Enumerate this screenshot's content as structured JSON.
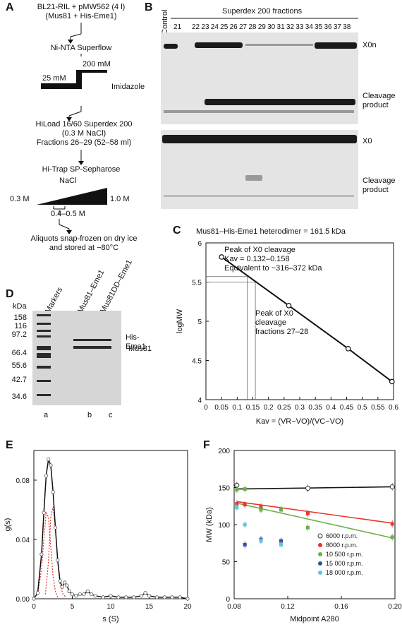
{
  "panelA": {
    "label": "A",
    "step1_line1": "BL21-RIL + pMW562 (4 l)",
    "step1_line2": "(Mus81 + His-Eme1)",
    "step2": "Ni-NTA Superflow",
    "imid_low": "25 mM",
    "imid_high": "200 mM",
    "imid_label": "Imidazole",
    "step3_line1": "HiLoad 16/60 Superdex 200",
    "step3_line2": "(0.3 M NaCl)",
    "step3_line3": "Fractions 26–29 (52–58 ml)",
    "step4": "Hi-Trap SP-Sepharose",
    "nacl_label": "NaCl",
    "nacl_low": "0.3 M",
    "nacl_high": "1.0 M",
    "nacl_range": "0.4–0.5 M",
    "step5_line1": "Aliquots snap-frozen on dry ice",
    "step5_line2": "and stored at −80°C"
  },
  "panelB": {
    "label": "B",
    "header": "Superdex 200 fractions",
    "control": "Control",
    "lanes": [
      "21",
      "22",
      "23",
      "24",
      "25",
      "26",
      "27",
      "28",
      "29",
      "30",
      "31",
      "32",
      "33",
      "34",
      "35",
      "36",
      "37",
      "38"
    ],
    "top_band_label": "X0n",
    "top_product_line1": "Cleavage",
    "top_product_line2": "product",
    "bottom_band_label": "X0",
    "bottom_product_line1": "Cleavage",
    "bottom_product_line2": "product"
  },
  "panelC": {
    "label": "C",
    "title": "Mus81–His-Eme1 heterodimer = 161.5 kDa",
    "annot1_line1": "Peak of X0 cleavage",
    "annot1_line2": "Kav = 0.132–0.158",
    "annot1_line3": "Equivalent to ~316–372 kDa",
    "annot2_line1": "Peak of X0",
    "annot2_line2": "cleavage",
    "annot2_line3": "fractions 27–28"
  },
  "panelD": {
    "label": "D",
    "kda": "kDa",
    "col_labels": [
      "Markers",
      "Mus81–Eme1",
      "Mus81DD–Eme1"
    ],
    "markers": [
      "158",
      "116",
      "97.2",
      "66.4",
      "55.6",
      "42.7",
      "34.6"
    ],
    "band1_line1": "His-",
    "band1_line2": "Eme1",
    "band2": "Mus81",
    "lane_letters": [
      "a",
      "b",
      "c"
    ]
  },
  "panelE": {
    "label": "E"
  },
  "panelF": {
    "label": "F"
  },
  "chart_data": [
    {
      "id": "C",
      "type": "line",
      "xlabel": "Kav = (VR−VO)/(VC−VO)",
      "ylabel": "logMW",
      "xlim": [
        0,
        0.6
      ],
      "ylim": [
        4,
        6
      ],
      "xticks": [
        "0",
        "0.05",
        "0.1",
        "0.15",
        "0.2",
        "0.25",
        "0.3",
        "0.35",
        "0.4",
        "0.45",
        "0.5",
        "0.55",
        "0.6"
      ],
      "yticks": [
        "4",
        "4.5",
        "5",
        "5.5",
        "6"
      ],
      "series": [
        {
          "x": [
            0.05,
            0.265,
            0.455,
            0.595
          ],
          "y": [
            5.82,
            5.2,
            4.65,
            4.23
          ]
        }
      ],
      "shaded_x": [
        0.132,
        0.158
      ],
      "shaded_y": [
        5.5,
        5.57
      ]
    },
    {
      "id": "E",
      "type": "line",
      "xlabel": "s (S)",
      "ylabel": "g(s)",
      "xlim": [
        0,
        20
      ],
      "ylim": [
        0,
        0.1
      ],
      "xticks": [
        "0",
        "5",
        "10",
        "15",
        "20"
      ],
      "yticks": [
        "0.00",
        "0.04",
        "0.08"
      ],
      "series": [
        {
          "x": [
            0,
            0.5,
            1,
            1.3,
            1.6,
            1.9,
            2.2,
            2.5,
            2.8,
            3.1,
            3.4,
            3.7,
            4.0,
            4.3,
            4.6,
            5.0,
            5.5,
            6.0,
            6.5,
            7.0,
            7.5,
            8.0,
            9.0,
            10,
            11,
            12,
            13,
            14,
            14.5,
            15,
            16,
            17,
            18,
            19,
            20
          ],
          "y": [
            0,
            0.004,
            0.03,
            0.058,
            0.083,
            0.094,
            0.09,
            0.072,
            0.048,
            0.026,
            0.012,
            0.008,
            0.011,
            0.009,
            0.005,
            0.003,
            0.002,
            0.003,
            0.003,
            0.005,
            0.003,
            0.002,
            0.001,
            0.002,
            0.001,
            0.001,
            0.001,
            0.002,
            0.004,
            0.002,
            0.001,
            0.001,
            0.001,
            0.001,
            0
          ]
        },
        {
          "x": [
            0.5,
            1.0,
            1.3,
            1.6,
            1.9,
            2.2,
            2.5,
            2.8,
            3.1
          ],
          "y": [
            0.003,
            0.02,
            0.04,
            0.058,
            0.055,
            0.035,
            0.015,
            0.005,
            0.001
          ]
        },
        {
          "x": [
            1.5,
            1.9,
            2.2,
            2.5,
            2.8,
            3.1,
            3.4,
            3.8,
            4.2
          ],
          "y": [
            0.003,
            0.025,
            0.055,
            0.062,
            0.048,
            0.025,
            0.01,
            0.003,
            0.001
          ]
        }
      ]
    },
    {
      "id": "F",
      "type": "scatter",
      "xlabel": "Midpoint A280",
      "ylabel": "MW (kDa)",
      "xlim": [
        0.08,
        0.2
      ],
      "ylim": [
        0,
        200
      ],
      "xticks": [
        "0.08",
        "0.12",
        "0.16",
        "0.20"
      ],
      "yticks": [
        "0",
        "50",
        "100",
        "150",
        "200"
      ],
      "series": [
        {
          "name": "6000 r.p.m.",
          "color": "#333333",
          "x": [
            0.082,
            0.135,
            0.198
          ],
          "y": [
            153,
            149,
            151
          ]
        },
        {
          "name": "8000 r.p.m.",
          "color": "#e8372c",
          "x": [
            0.082,
            0.088,
            0.1,
            0.115,
            0.135,
            0.198
          ],
          "y": [
            128,
            127,
            124,
            120,
            115,
            101
          ]
        },
        {
          "name": "10 500 r.p.m.",
          "color": "#6ab04c",
          "x": [
            0.082,
            0.088,
            0.1,
            0.115,
            0.135,
            0.198
          ],
          "y": [
            147,
            148,
            120,
            120,
            96,
            83
          ]
        },
        {
          "name": "15 000 r.p.m.",
          "color": "#2d4fa3",
          "x": [
            0.088,
            0.1,
            0.115
          ],
          "y": [
            73,
            80,
            78
          ]
        },
        {
          "name": "18 000 r.p.m.",
          "color": "#5fc6d6",
          "x": [
            0.082,
            0.088,
            0.1,
            0.115
          ],
          "y": [
            123,
            100,
            78,
            73
          ]
        }
      ],
      "fit_lines": [
        {
          "color": "#111111",
          "x": [
            0.082,
            0.198
          ],
          "y": [
            148,
            151
          ]
        },
        {
          "color": "#e8372c",
          "x": [
            0.082,
            0.198
          ],
          "y": [
            131,
            102
          ]
        },
        {
          "color": "#6ab04c",
          "x": [
            0.082,
            0.198
          ],
          "y": [
            129,
            82
          ]
        }
      ]
    }
  ]
}
